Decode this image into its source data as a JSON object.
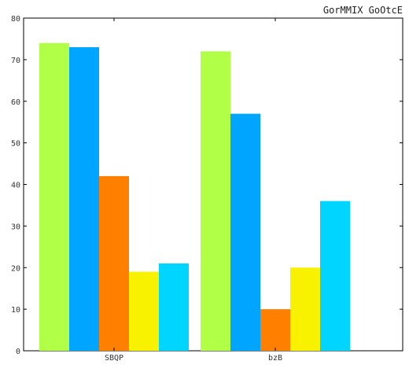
{
  "chart_data": {
    "type": "bar",
    "title": "GorMMIX GoOtcE",
    "xlabel": "",
    "ylabel": "",
    "categories": [
      "SBQP",
      "bzB"
    ],
    "ylim": [
      0,
      80
    ],
    "yticks": [
      0,
      10,
      20,
      30,
      40,
      50,
      60,
      70,
      80
    ],
    "grid": false,
    "legend": "none",
    "series": [
      {
        "values": [
          74,
          72
        ],
        "color": "#b2ff47"
      },
      {
        "values": [
          73,
          57
        ],
        "color": "#00a5ff"
      },
      {
        "values": [
          42,
          10
        ],
        "color": "#ff7f00"
      },
      {
        "values": [
          19,
          20
        ],
        "color": "#f8f200"
      },
      {
        "values": [
          21,
          36
        ],
        "color": "#00d5ff"
      }
    ]
  }
}
